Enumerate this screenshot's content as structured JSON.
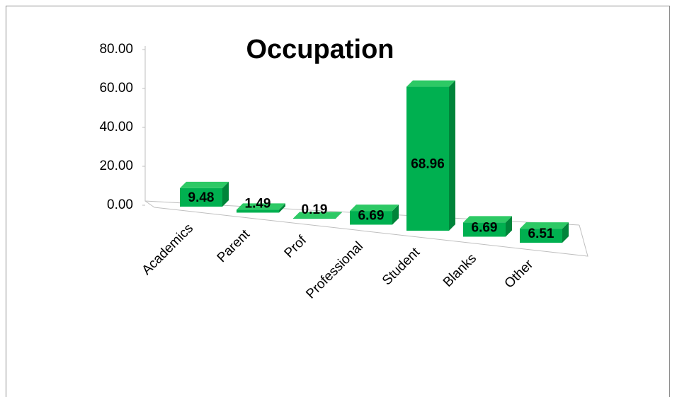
{
  "chart_data": {
    "type": "bar3d",
    "title": "Occupation",
    "categories": [
      "Academics",
      "Parent",
      "Prof",
      "Professional",
      "Student",
      "Blanks",
      "Other"
    ],
    "values": [
      9.48,
      1.49,
      0.19,
      6.69,
      68.96,
      6.69,
      6.51
    ],
    "color": "#00b050",
    "ylim": [
      0,
      80
    ],
    "yticks": [
      {
        "value": 0,
        "label": "0.00"
      },
      {
        "value": 20,
        "label": "20.00"
      },
      {
        "value": 40,
        "label": "40.00"
      },
      {
        "value": 60,
        "label": "60.00"
      },
      {
        "value": 80,
        "label": "80.00"
      }
    ]
  }
}
